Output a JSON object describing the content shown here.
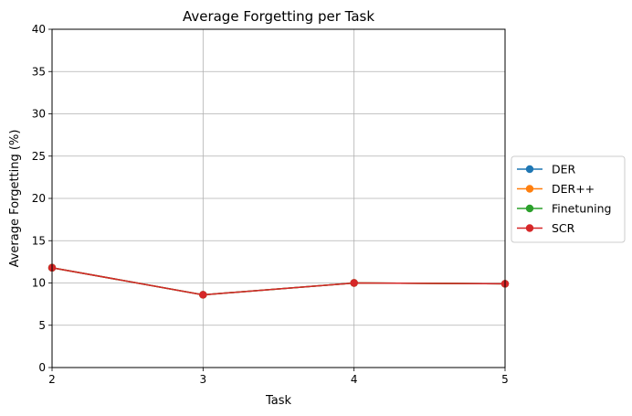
{
  "chart_data": {
    "type": "line",
    "title": "Average Forgetting per Task",
    "xlabel": "Task",
    "ylabel": "Average Forgetting (%)",
    "x": [
      2,
      3,
      4,
      5
    ],
    "xlim": [
      2,
      5
    ],
    "ylim": [
      0,
      40
    ],
    "xticks": [
      "2",
      "3",
      "4",
      "5"
    ],
    "yticks": [
      "0",
      "5",
      "10",
      "15",
      "20",
      "25",
      "30",
      "35",
      "40"
    ],
    "grid": true,
    "legend_position": "center-right outside",
    "series": [
      {
        "name": "DER",
        "color": "#1f77b4",
        "values": [
          11.8,
          8.6,
          10.0,
          9.9
        ]
      },
      {
        "name": "DER++",
        "color": "#ff7f0e",
        "values": [
          11.8,
          8.6,
          10.0,
          9.9
        ]
      },
      {
        "name": "Finetuning",
        "color": "#2ca02c",
        "values": [
          11.8,
          8.6,
          10.0,
          9.9
        ]
      },
      {
        "name": "SCR",
        "color": "#d62728",
        "values": [
          11.8,
          8.6,
          10.0,
          9.9
        ]
      }
    ]
  }
}
